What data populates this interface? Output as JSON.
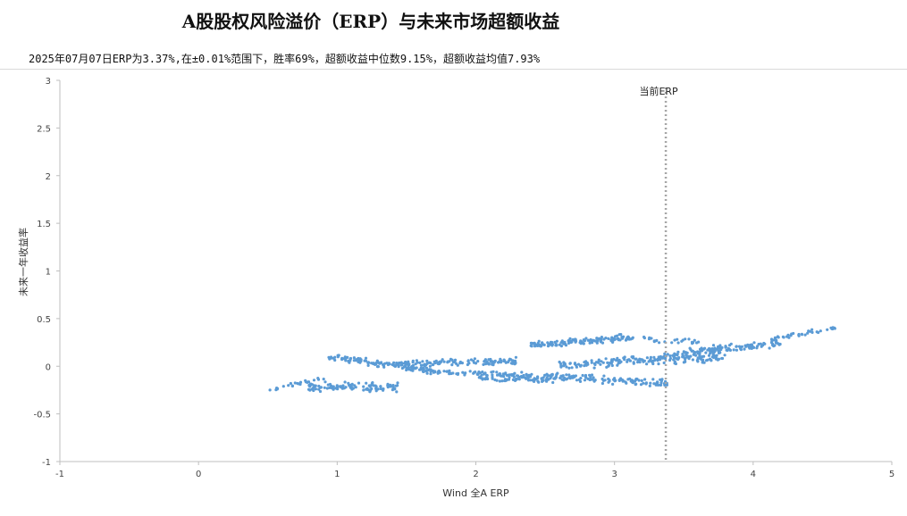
{
  "chart_data": {
    "type": "scatter",
    "title": "A股股权风险溢价（ERP）与未来市场超额收益",
    "subtitle": "2025年07月07日ERP为3.37%,在±0.01%范围下，胜率69%，超额收益中位数9.15%，超额收益均值7.93%",
    "xlabel": "Wind 全A ERP",
    "ylabel": "未来一年收益率",
    "xlim": [
      -1,
      5
    ],
    "ylim": [
      -1,
      3
    ],
    "x_ticks": [
      "-1",
      "0",
      "1",
      "2",
      "3",
      "4",
      "5"
    ],
    "y_ticks": [
      "3",
      "2.5",
      "2",
      "1.5",
      "1",
      "0.5",
      "0",
      "-0.5",
      "-1"
    ],
    "grid": false,
    "point_color": "#5b9bd5",
    "reference_line": {
      "x": 3.37,
      "label": "当前ERP",
      "color": "#a6a6a6",
      "style": "dotted"
    },
    "series": [
      {
        "clusters": [
          {
            "x_start": 0.52,
            "x_end": 0.9,
            "y_start": -0.25,
            "y_end": -0.12,
            "spread": 0.03,
            "count": 24
          },
          {
            "x_start": 0.8,
            "x_end": 1.45,
            "y_start": -0.22,
            "y_end": -0.22,
            "spread": 0.06,
            "count": 110
          },
          {
            "x_start": 0.95,
            "x_end": 1.7,
            "y_start": 0.1,
            "y_end": -0.05,
            "spread": 0.05,
            "count": 120
          },
          {
            "x_start": 1.4,
            "x_end": 2.3,
            "y_start": 0.03,
            "y_end": 0.05,
            "spread": 0.05,
            "count": 130
          },
          {
            "x_start": 1.6,
            "x_end": 2.4,
            "y_start": -0.05,
            "y_end": -0.1,
            "spread": 0.04,
            "count": 80
          },
          {
            "x_start": 2.0,
            "x_end": 2.55,
            "y_start": -0.12,
            "y_end": -0.15,
            "spread": 0.05,
            "count": 60
          },
          {
            "x_start": 2.4,
            "x_end": 3.1,
            "y_start": 0.22,
            "y_end": 0.3,
            "spread": 0.05,
            "count": 130
          },
          {
            "x_start": 2.5,
            "x_end": 3.4,
            "y_start": -0.1,
            "y_end": -0.18,
            "spread": 0.06,
            "count": 130
          },
          {
            "x_start": 2.6,
            "x_end": 3.8,
            "y_start": 0.02,
            "y_end": 0.1,
            "spread": 0.07,
            "count": 170
          },
          {
            "x_start": 3.3,
            "x_end": 4.2,
            "y_start": 0.1,
            "y_end": 0.25,
            "spread": 0.06,
            "count": 140
          },
          {
            "x_start": 3.1,
            "x_end": 3.6,
            "y_start": 0.3,
            "y_end": 0.25,
            "spread": 0.04,
            "count": 30
          },
          {
            "x_start": 4.1,
            "x_end": 4.6,
            "y_start": 0.28,
            "y_end": 0.4,
            "spread": 0.04,
            "count": 35
          }
        ]
      }
    ]
  }
}
